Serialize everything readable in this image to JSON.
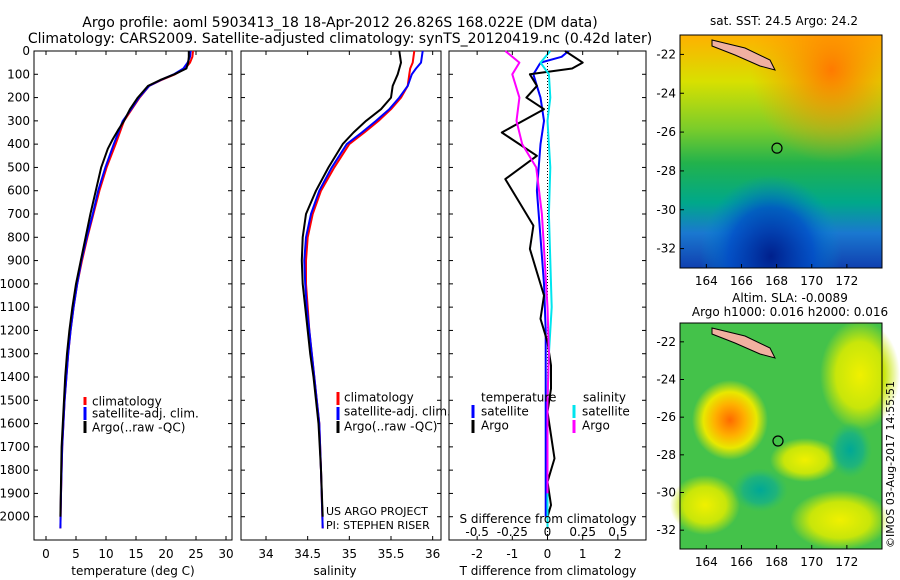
{
  "header": {
    "line1": "Argo profile: aoml 5903413_18 18-Apr-2012 26.826S 168.022E (DM data)",
    "line2": "Climatology: CARS2009. Satellite-adjusted climatology: synTS_20120419.nc (0.42d later)"
  },
  "colors": {
    "climatology": "#ff0000",
    "satellite": "#0000ff",
    "argo": "#000000",
    "sal_sat": "#00e5ee",
    "sal_argo": "#ff00ff"
  },
  "chart_data": [
    {
      "type": "line",
      "panel": "temperature",
      "xlabel": "temperature (deg C)",
      "ylabel": "",
      "xlim": [
        -2,
        31
      ],
      "ylim": [
        2100,
        0
      ],
      "xticks": [
        0,
        5,
        10,
        15,
        20,
        25,
        30
      ],
      "yticks": [
        0,
        100,
        200,
        300,
        400,
        500,
        600,
        700,
        800,
        900,
        1000,
        1100,
        1200,
        1300,
        1400,
        1500,
        1600,
        1700,
        1800,
        1900,
        2000
      ],
      "legend": [
        "climatology",
        "satellite-adj. clim.",
        "Argo(..raw -QC)"
      ],
      "legend_position": "lower-center",
      "series": [
        {
          "name": "climatology",
          "color": "#ff0000",
          "x": [
            24.5,
            24.4,
            24.0,
            23.2,
            21.5,
            19.2,
            17.2,
            15.6,
            14.3,
            13.0,
            11.6,
            10.1,
            8.9,
            7.9,
            6.9,
            6.0,
            5.2,
            4.6,
            4.1,
            3.7,
            3.4,
            3.1,
            2.9,
            2.7,
            2.5,
            2.4
          ],
          "y": [
            0,
            25,
            50,
            75,
            100,
            125,
            150,
            200,
            250,
            300,
            400,
            500,
            600,
            700,
            800,
            900,
            1000,
            1100,
            1200,
            1300,
            1400,
            1500,
            1600,
            1700,
            1900,
            2050
          ]
        },
        {
          "name": "satellite-adj. clim.",
          "color": "#0000ff",
          "x": [
            24.1,
            24.0,
            23.6,
            22.9,
            21.3,
            19.1,
            17.2,
            15.5,
            14.2,
            12.8,
            11.3,
            9.9,
            8.7,
            7.8,
            6.8,
            5.9,
            5.2,
            4.6,
            4.1,
            3.7,
            3.4,
            3.1,
            2.9,
            2.7,
            2.5,
            2.4
          ],
          "y": [
            0,
            25,
            50,
            75,
            100,
            125,
            150,
            200,
            250,
            300,
            400,
            500,
            600,
            700,
            800,
            900,
            1000,
            1100,
            1200,
            1300,
            1400,
            1500,
            1600,
            1700,
            1900,
            2050
          ]
        },
        {
          "name": "Argo(..raw -QC)",
          "color": "#000000",
          "x": [
            23.8,
            23.8,
            23.7,
            23.4,
            21.4,
            19.0,
            17.0,
            15.3,
            14.0,
            13.0,
            12.0,
            11.1,
            10.3,
            9.2,
            8.3,
            7.4,
            6.6,
            5.8,
            5.0,
            4.4,
            3.9,
            3.5,
            3.2,
            3.0,
            2.8,
            2.6,
            2.5,
            2.4
          ],
          "y": [
            0,
            25,
            50,
            75,
            100,
            125,
            150,
            200,
            250,
            300,
            340,
            380,
            420,
            500,
            600,
            700,
            800,
            900,
            1000,
            1100,
            1200,
            1300,
            1400,
            1500,
            1600,
            1700,
            1850,
            2000
          ]
        }
      ]
    },
    {
      "type": "line",
      "panel": "salinity",
      "xlabel": "salinity",
      "xlim": [
        33.7,
        36.1
      ],
      "ylim": [
        2100,
        0
      ],
      "xticks": [
        34,
        34.5,
        35,
        35.5,
        36
      ],
      "legend": [
        "climatology",
        "satellite-adj. clim.",
        "Argo(..raw -QC)"
      ],
      "legend_position": "lower-right",
      "annotations": [
        "US ARGO PROJECT",
        "PI: STEPHEN RISER"
      ],
      "series": [
        {
          "name": "climatology",
          "color": "#ff0000",
          "x": [
            35.78,
            35.76,
            35.73,
            35.72,
            35.7,
            35.62,
            35.5,
            35.35,
            35.18,
            35.0,
            34.82,
            34.66,
            34.56,
            34.5,
            34.48,
            34.48,
            34.5,
            34.52,
            34.55,
            34.58,
            34.61,
            34.64,
            34.66,
            34.68
          ],
          "y": [
            0,
            50,
            75,
            100,
            150,
            200,
            250,
            300,
            350,
            400,
            500,
            600,
            700,
            800,
            900,
            1000,
            1100,
            1200,
            1300,
            1400,
            1500,
            1600,
            1800,
            2050
          ]
        },
        {
          "name": "satellite-adj. clim.",
          "color": "#0000ff",
          "x": [
            35.88,
            35.86,
            35.8,
            35.75,
            35.7,
            35.6,
            35.48,
            35.32,
            35.15,
            34.97,
            34.79,
            34.64,
            34.54,
            34.48,
            34.46,
            34.47,
            34.49,
            34.52,
            34.55,
            34.58,
            34.61,
            34.64,
            34.66,
            34.68
          ],
          "y": [
            0,
            50,
            75,
            100,
            150,
            200,
            250,
            300,
            350,
            400,
            500,
            600,
            700,
            800,
            900,
            1000,
            1100,
            1200,
            1300,
            1400,
            1500,
            1600,
            1800,
            2050
          ]
        },
        {
          "name": "Argo(..raw -QC)",
          "color": "#000000",
          "x": [
            35.6,
            35.62,
            35.58,
            35.52,
            35.5,
            35.38,
            35.2,
            35.05,
            34.92,
            34.75,
            34.6,
            34.48,
            34.44,
            34.43,
            34.44,
            34.47,
            34.5,
            34.53,
            34.57,
            34.6,
            34.63,
            34.66,
            34.68
          ],
          "y": [
            0,
            50,
            100,
            150,
            200,
            250,
            300,
            350,
            400,
            500,
            600,
            700,
            800,
            900,
            1000,
            1100,
            1200,
            1300,
            1400,
            1500,
            1600,
            1800,
            2000
          ]
        }
      ]
    },
    {
      "type": "line",
      "panel": "difference",
      "xlabel": "T difference from climatology",
      "top_label": "S difference from climatology",
      "xlim": [
        -2.8,
        2.8
      ],
      "ylim": [
        2100,
        0
      ],
      "xticks": [
        -2,
        -1,
        0,
        1,
        2
      ],
      "xticklabels_t": [
        "-2",
        "-1",
        "0",
        "1",
        "2"
      ],
      "xticks_s": [
        -0.5,
        -0.25,
        0,
        0.25,
        0.5
      ],
      "xticklabels_s": [
        "-0.5",
        "-0.25",
        "0",
        "0.25",
        "0.5"
      ],
      "legend_t_title": "temperature",
      "legend_s_title": "salinity",
      "legend_t": [
        "satellite",
        "Argo"
      ],
      "legend_s": [
        "satellite",
        "salinity_argo"
      ],
      "legend_s_labels": [
        "satellite",
        "Argo"
      ],
      "legend_position": "lower-center",
      "series": [
        {
          "name": "satellite",
          "group": "temperature",
          "color": "#0000ff",
          "x": [
            0.6,
            0.4,
            -0.2,
            -0.4,
            -0.3,
            -0.2,
            -0.1,
            -0.2,
            -0.3,
            -0.2,
            -0.1,
            -0.05,
            -0.05,
            -0.05,
            -0.05,
            -0.05,
            -0.05
          ],
          "y": [
            0,
            25,
            50,
            100,
            150,
            200,
            300,
            400,
            600,
            800,
            1000,
            1200,
            1400,
            1600,
            1800,
            1900,
            2000
          ]
        },
        {
          "name": "Argo",
          "group": "temperature",
          "color": "#000000",
          "x": [
            0.5,
            1.0,
            0.7,
            -0.5,
            -0.3,
            -0.6,
            -0.1,
            -1.3,
            -0.3,
            -1.2,
            -0.8,
            -0.4,
            -0.5,
            -0.3,
            -0.1,
            -0.2,
            0.0,
            0.1,
            0.1,
            0.0,
            0.1,
            0.2,
            0.0,
            0.1,
            0.0
          ],
          "y": [
            0,
            50,
            75,
            100,
            150,
            200,
            250,
            350,
            450,
            550,
            650,
            750,
            850,
            950,
            1050,
            1150,
            1250,
            1350,
            1450,
            1550,
            1650,
            1750,
            1850,
            1950,
            2000
          ]
        },
        {
          "name": "satellite",
          "group": "salinity",
          "color": "#00e5ee",
          "x": [
            0.02,
            -0.05,
            0.01,
            0.02,
            0.0,
            0.02,
            0.01,
            0.02,
            0.03,
            0.01,
            0.0,
            0.0,
            0.0,
            0.0
          ],
          "y": [
            0,
            50,
            100,
            200,
            300,
            500,
            700,
            900,
            1100,
            1300,
            1500,
            1700,
            1900,
            2050
          ]
        },
        {
          "name": "Argo",
          "group": "salinity",
          "color": "#ff00ff",
          "x": [
            -0.3,
            -0.2,
            -0.25,
            -0.2,
            -0.22,
            -0.18,
            -0.08,
            -0.04,
            -0.02,
            0.0,
            0.01,
            0.0,
            0.0,
            0.0
          ],
          "y": [
            0,
            50,
            100,
            200,
            300,
            400,
            500,
            700,
            900,
            1100,
            1300,
            1500,
            1700,
            1900
          ]
        }
      ]
    },
    {
      "type": "heatmap",
      "panel": "sst_map",
      "title": "sat. SST: 24.5 Argo: 24.2",
      "xlim": [
        162.5,
        174
      ],
      "ylim": [
        -33,
        -21
      ],
      "xticks": [
        164,
        166,
        168,
        170,
        172
      ],
      "yticks": [
        -22,
        -24,
        -26,
        -28,
        -30,
        -32
      ],
      "argo_position": [
        168.022,
        -26.826
      ]
    },
    {
      "type": "heatmap",
      "panel": "sla_map",
      "title_line1": "Altim. SLA: -0.0089",
      "title_line2": "Argo h1000: 0.016 h2000: 0.016",
      "xlim": [
        162.5,
        174
      ],
      "ylim": [
        -33,
        -21
      ],
      "xticks": [
        164,
        166,
        168,
        170,
        172
      ],
      "yticks": [
        -22,
        -24,
        -26,
        -28,
        -30,
        -32
      ],
      "argo_position": [
        168.022,
        -26.826
      ]
    }
  ],
  "credit": "©IMOS 03-Aug-2017 14:55:51"
}
